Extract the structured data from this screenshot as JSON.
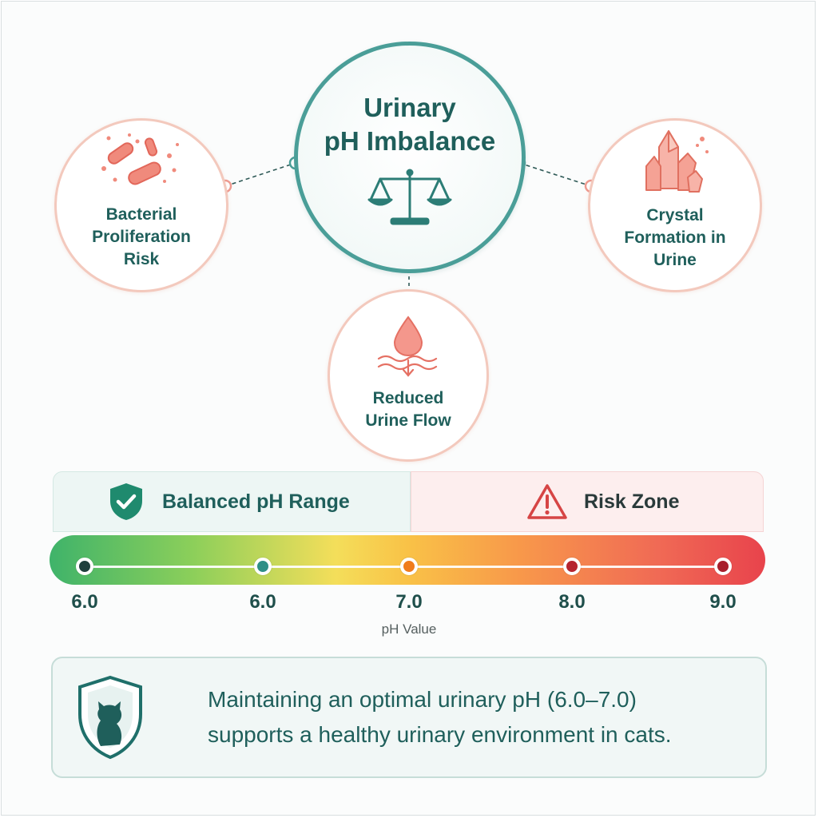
{
  "center": {
    "title": "Urinary\npH Imbalance",
    "icon": "balance-scale-icon",
    "border_color": "#4a9e98"
  },
  "effects": {
    "left": {
      "label": "Bacterial\nProliferation\nRisk",
      "icon": "bacteria-icon"
    },
    "right": {
      "label": "Crystal\nFormation in\nUrine",
      "icon": "crystal-icon"
    },
    "bottom": {
      "label": "Reduced\nUrine Flow",
      "icon": "droplet-flow-icon"
    }
  },
  "zones": {
    "balanced": {
      "label": "Balanced pH Range",
      "icon": "shield-check-icon",
      "color": "#1f8a6e"
    },
    "risk": {
      "label": "Risk Zone",
      "icon": "warning-icon",
      "color": "#d64545"
    }
  },
  "scale": {
    "ticks": [
      "6.0",
      "6.0",
      "7.0",
      "8.0",
      "9.0"
    ],
    "tick_colors": [
      "#1f3f3d",
      "#2e8f86",
      "#f07c1c",
      "#b62530",
      "#a81f2c"
    ],
    "axis_label": "pH Value"
  },
  "note": {
    "text": "Maintaining an optimal urinary pH (6.0–7.0)\nsupports a healthy urinary environment in cats.",
    "icon": "cat-shield-icon"
  }
}
